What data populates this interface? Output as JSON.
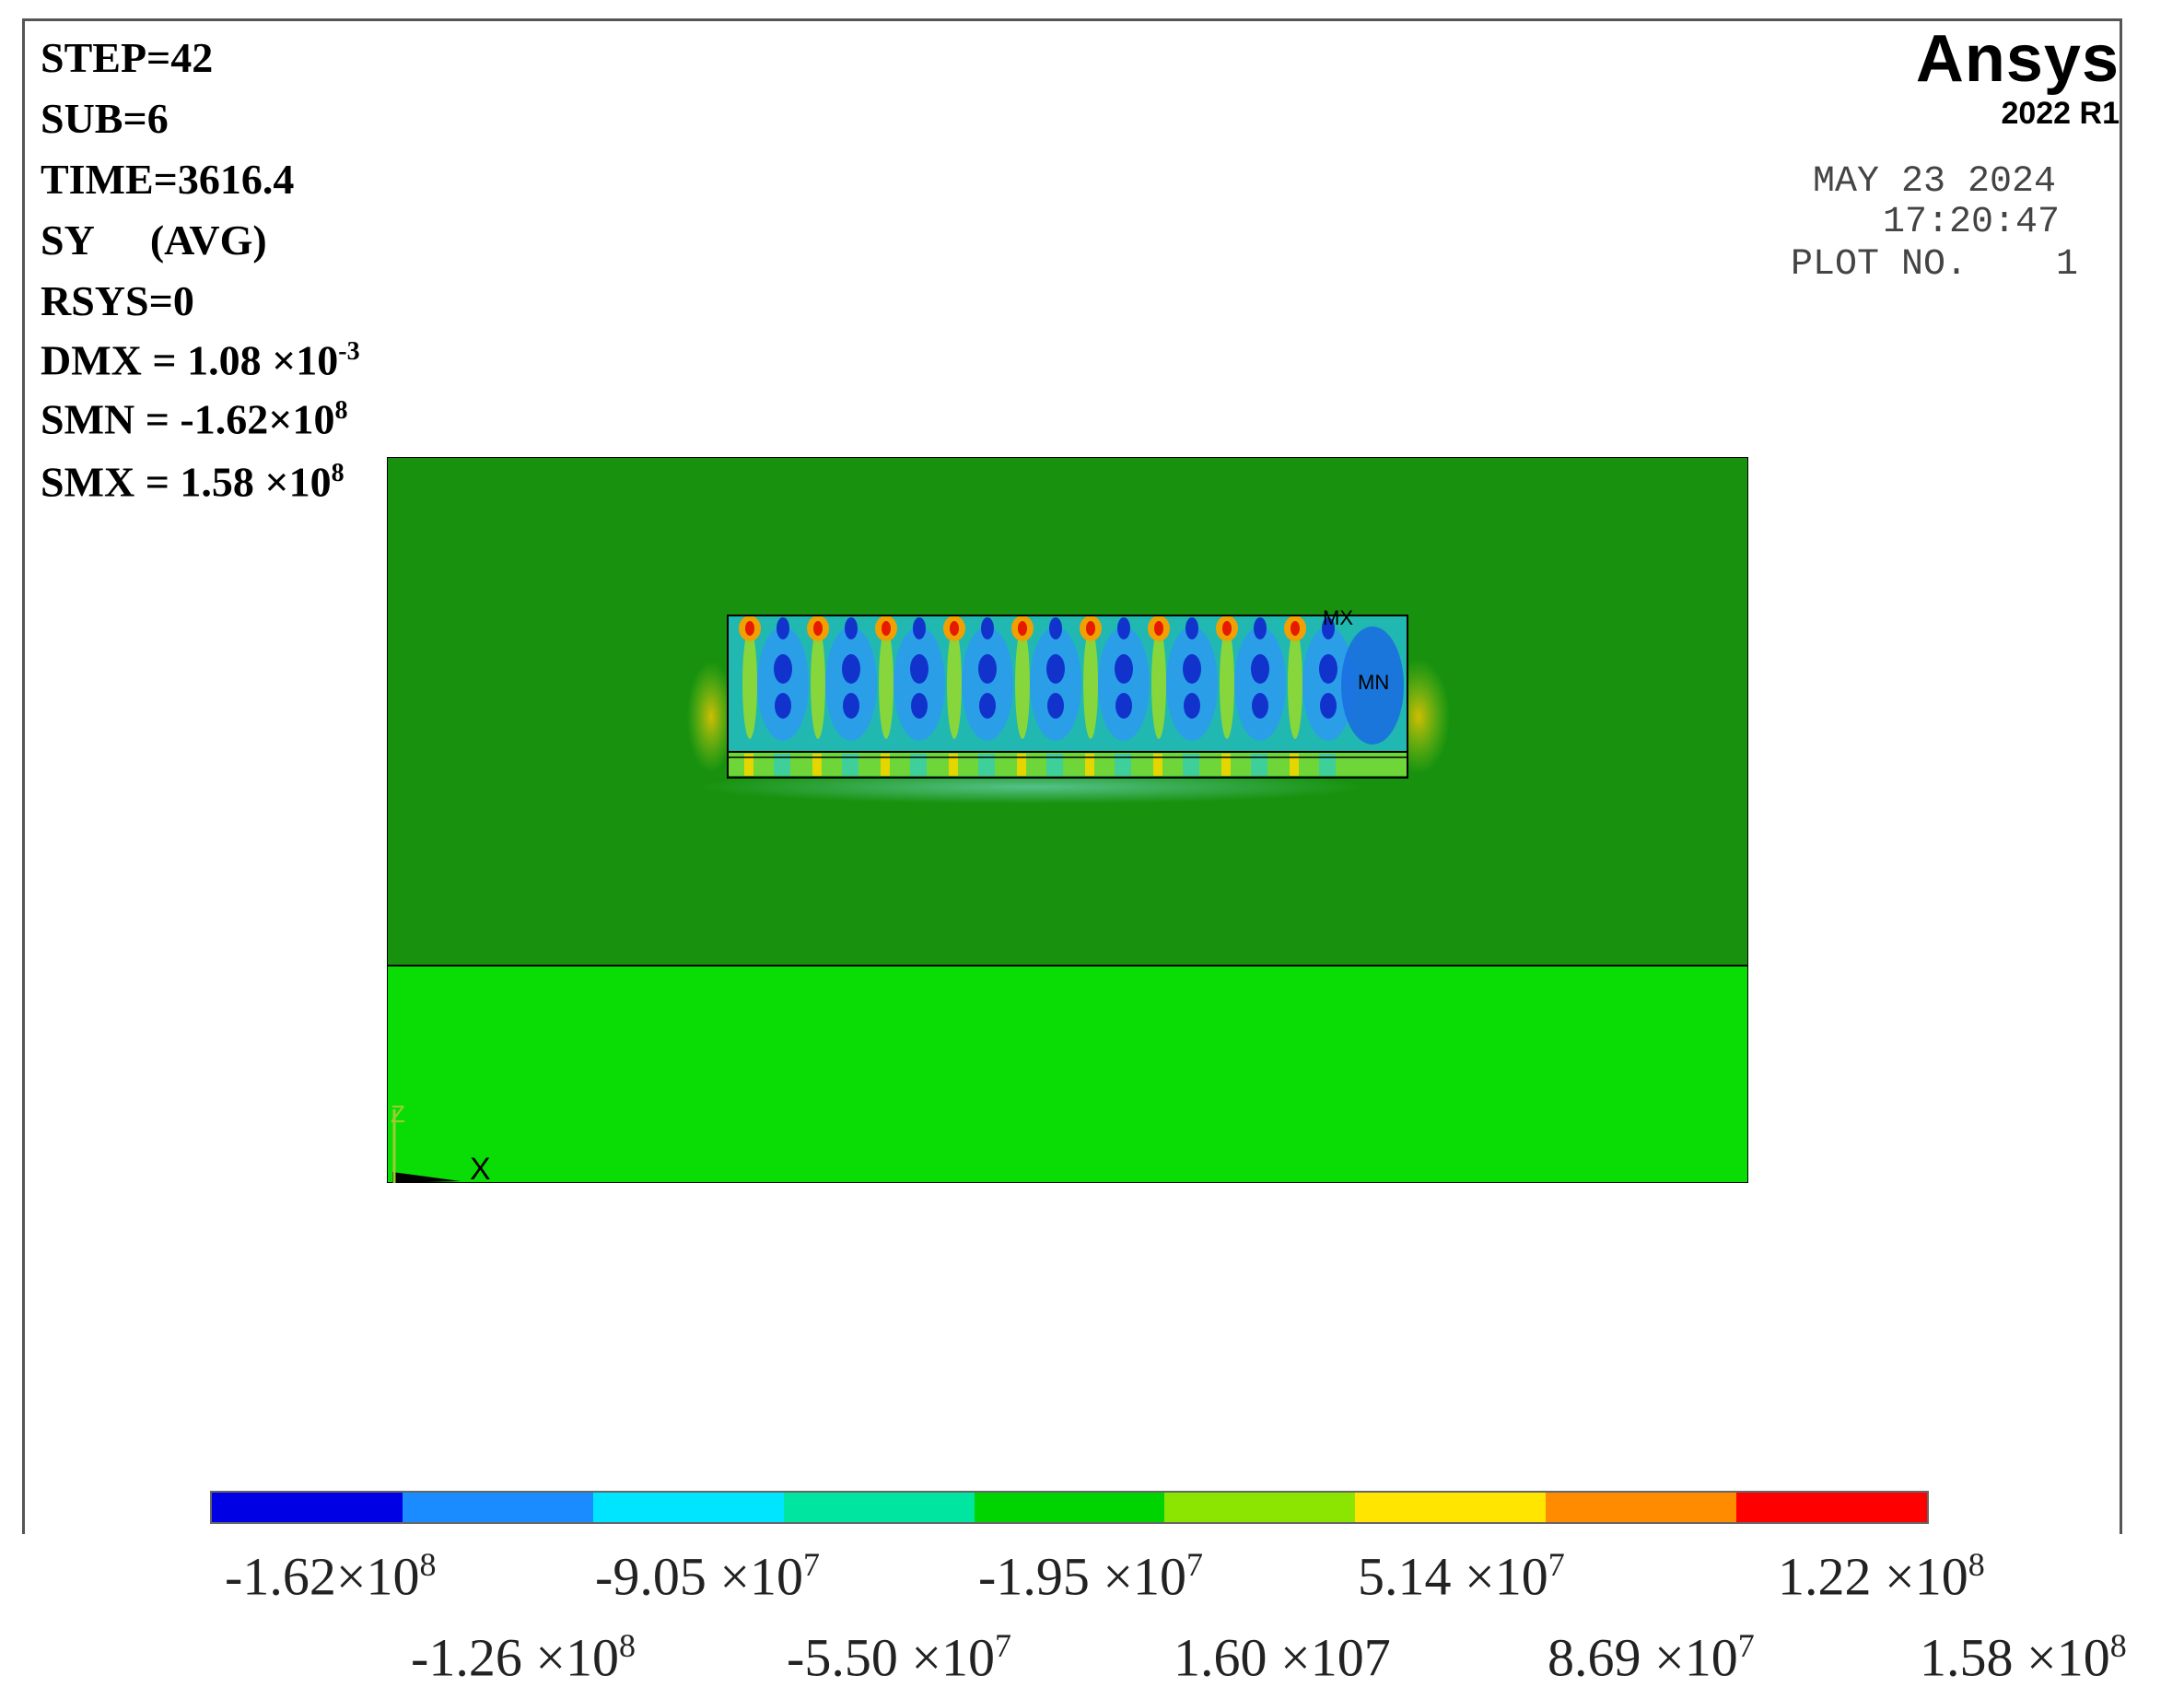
{
  "info": {
    "step": "STEP=42",
    "sub": "SUB=6",
    "time": "TIME=3616.4",
    "quantity": "SY",
    "avg": "(AVG)",
    "rsys": "RSYS=0",
    "dmx_label": "DMX = 1.08 ×10",
    "dmx_exp": "-3",
    "smn_label": "SMN = -1.62×10",
    "smn_exp": "8",
    "smx_label": "SMX = 1.58 ×10",
    "smx_exp": "8"
  },
  "brand": {
    "name": "Ansys",
    "version": "2022 R1"
  },
  "stamp": {
    "date": "MAY 23 2024",
    "time": "17:20:47",
    "plot": "PLOT NO.    1"
  },
  "markers": {
    "max": "MX",
    "min": "MN",
    "x_axis": "X",
    "z_axis": "Z"
  },
  "colors": {
    "plate": "#18920e",
    "substrate": "#0add06",
    "outline": "#000000",
    "legend": [
      "#0000e5",
      "#1a8cff",
      "#00e5ff",
      "#00e5a0",
      "#00d400",
      "#8ce500",
      "#ffe500",
      "#ff8c00",
      "#ff0000"
    ]
  },
  "legend_top": [
    {
      "mant": "-1.62×10",
      "exp": "8"
    },
    {
      "mant": "-9.05 ×10",
      "exp": "7"
    },
    {
      "mant": "-1.95 ×10",
      "exp": "7"
    },
    {
      "mant": "5.14 ×10",
      "exp": "7"
    },
    {
      "mant": "1.22 ×10",
      "exp": "8"
    }
  ],
  "legend_bottom": [
    {
      "mant": "-1.26 ×10",
      "exp": "8"
    },
    {
      "mant": "-5.50 ×10",
      "exp": "7"
    },
    {
      "mant": "1.60 ×107",
      "exp": ""
    },
    {
      "mant": "8.69 ×10",
      "exp": "7"
    },
    {
      "mant": "1.58 ×10",
      "exp": "8"
    }
  ]
}
